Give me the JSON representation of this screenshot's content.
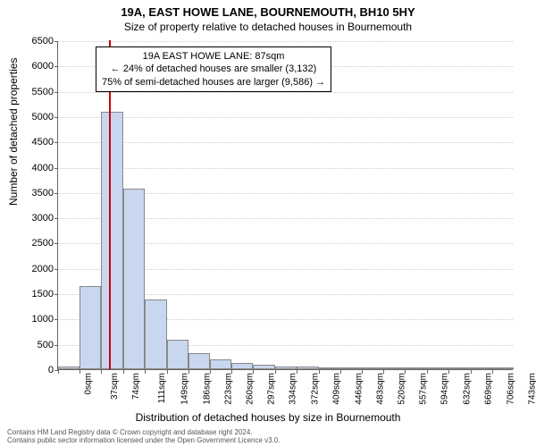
{
  "title_main": "19A, EAST HOWE LANE, BOURNEMOUTH, BH10 5HY",
  "title_sub": "Size of property relative to detached houses in Bournemouth",
  "ylabel": "Number of detached properties",
  "xlabel": "Distribution of detached houses by size in Bournemouth",
  "annotation": {
    "line1": "19A EAST HOWE LANE: 87sqm",
    "line2": "← 24% of detached houses are smaller (3,132)",
    "line3": "75% of semi-detached houses are larger (9,586) →"
  },
  "chart": {
    "type": "bar",
    "bar_fill": "#c9d6f0",
    "bar_border": "#888888",
    "marker_color": "#cc0000",
    "grid_color": "#cccccc",
    "background": "#ffffff",
    "ylim": [
      0,
      6500
    ],
    "ytick_step": 500,
    "marker_x_sqm": 87,
    "x_start": 0,
    "x_end": 780,
    "x_tick_step": 37,
    "bars": [
      {
        "x0": 0,
        "x1": 37,
        "value": 60
      },
      {
        "x0": 37,
        "x1": 74,
        "value": 1650
      },
      {
        "x0": 74,
        "x1": 111,
        "value": 5090
      },
      {
        "x0": 111,
        "x1": 149,
        "value": 3560
      },
      {
        "x0": 149,
        "x1": 186,
        "value": 1380
      },
      {
        "x0": 186,
        "x1": 223,
        "value": 590
      },
      {
        "x0": 223,
        "x1": 260,
        "value": 320
      },
      {
        "x0": 260,
        "x1": 297,
        "value": 200
      },
      {
        "x0": 297,
        "x1": 334,
        "value": 120
      },
      {
        "x0": 334,
        "x1": 372,
        "value": 80
      },
      {
        "x0": 372,
        "x1": 409,
        "value": 50
      },
      {
        "x0": 409,
        "x1": 446,
        "value": 45
      },
      {
        "x0": 446,
        "x1": 483,
        "value": 20
      },
      {
        "x0": 483,
        "x1": 520,
        "value": 12
      },
      {
        "x0": 520,
        "x1": 557,
        "value": 8
      },
      {
        "x0": 557,
        "x1": 594,
        "value": 5
      },
      {
        "x0": 594,
        "x1": 632,
        "value": 5
      },
      {
        "x0": 632,
        "x1": 669,
        "value": 2
      },
      {
        "x0": 669,
        "x1": 706,
        "value": 5
      },
      {
        "x0": 706,
        "x1": 743,
        "value": 2
      },
      {
        "x0": 743,
        "x1": 780,
        "value": 2
      }
    ],
    "xticks": [
      0,
      37,
      74,
      111,
      149,
      186,
      223,
      260,
      297,
      334,
      372,
      409,
      446,
      483,
      520,
      557,
      594,
      632,
      669,
      706,
      743
    ]
  },
  "footer_line1": "Contains HM Land Registry data © Crown copyright and database right 2024.",
  "footer_line2": "Contains public sector information licensed under the Open Government Licence v3.0."
}
